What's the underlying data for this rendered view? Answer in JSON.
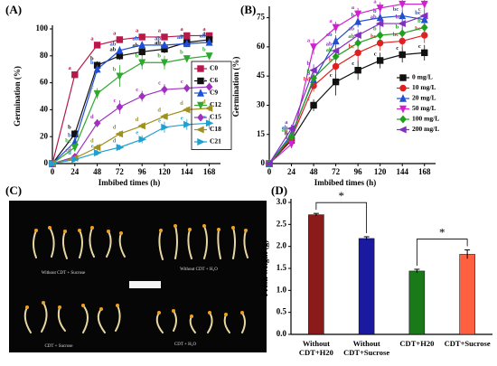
{
  "chart_data": [
    {
      "type": "line",
      "panel_label": "(A)",
      "ylabel": "Germination (%)",
      "xlabel": "Imbibed times (h)",
      "x": [
        0,
        24,
        48,
        72,
        96,
        120,
        144,
        168
      ],
      "xlim": [
        0,
        180
      ],
      "xticks": [
        0,
        24,
        48,
        72,
        96,
        120,
        144,
        168
      ],
      "ylim": [
        0,
        100
      ],
      "yticks": [
        0,
        20,
        40,
        60,
        80,
        100
      ],
      "legend": "right",
      "legend_box": true,
      "series": [
        {
          "name": "C0",
          "color": "#b8184a",
          "marker": "square",
          "values": [
            0,
            66,
            88,
            92,
            94,
            94,
            95,
            95
          ],
          "errors": [
            0,
            1,
            2,
            2,
            2,
            2,
            2,
            2
          ],
          "letters": [
            null,
            "a",
            "a",
            "a",
            "a",
            "a",
            "a",
            "a"
          ]
        },
        {
          "name": "C6",
          "color": "#111111",
          "marker": "square",
          "values": [
            0,
            22,
            73,
            80,
            83,
            85,
            90,
            92
          ],
          "errors": [
            0,
            3,
            3,
            3,
            3,
            3,
            2,
            2
          ],
          "letters": [
            null,
            "b",
            "b",
            "ab",
            "ab",
            "ab",
            "a",
            "a"
          ]
        },
        {
          "name": "C9",
          "color": "#1f4fd8",
          "marker": "triangle-up",
          "values": [
            0,
            16,
            70,
            84,
            88,
            88,
            89,
            90
          ],
          "errors": [
            0,
            3,
            3,
            3,
            2,
            2,
            2,
            2
          ],
          "letters": [
            null,
            "b",
            "b",
            "ab",
            "ab",
            "ab",
            "ab",
            "ab"
          ]
        },
        {
          "name": "C12",
          "color": "#2ea82e",
          "marker": "triangle-down",
          "values": [
            0,
            12,
            52,
            65,
            75,
            75,
            78,
            80
          ],
          "errors": [
            0,
            3,
            4,
            8,
            5,
            5,
            2,
            2
          ],
          "letters": [
            null,
            "bc",
            "c",
            "b",
            "b",
            "b",
            "b",
            "b"
          ]
        },
        {
          "name": "C15",
          "color": "#a030c0",
          "marker": "diamond",
          "values": [
            0,
            5,
            30,
            42,
            50,
            55,
            56,
            57
          ],
          "errors": [
            0,
            2,
            3,
            5,
            4,
            4,
            3,
            3
          ],
          "letters": [
            null,
            "cd",
            "d",
            "c",
            "c",
            "c",
            "c",
            "c"
          ]
        },
        {
          "name": "C18",
          "color": "#a09020",
          "marker": "triangle-left",
          "values": [
            0,
            4,
            12,
            22,
            28,
            35,
            40,
            41
          ],
          "errors": [
            0,
            1,
            2,
            2,
            2,
            2,
            2,
            2
          ],
          "letters": [
            null,
            "d",
            "d",
            "d",
            "d",
            "d",
            "d",
            "d"
          ]
        },
        {
          "name": "C21",
          "color": "#20a0d0",
          "marker": "triangle-right",
          "values": [
            0,
            3,
            8,
            12,
            18,
            27,
            29,
            30
          ],
          "errors": [
            0,
            1,
            2,
            2,
            3,
            4,
            4,
            4
          ],
          "letters": [
            null,
            "d",
            "e",
            "d",
            "e",
            "e",
            "e",
            "e"
          ]
        }
      ]
    },
    {
      "type": "line",
      "panel_label": "(B)",
      "ylabel": "Germination (%)",
      "xlabel": "Imbibed times (h)",
      "x": [
        0,
        24,
        48,
        72,
        96,
        120,
        144,
        168
      ],
      "xlim": [
        0,
        180
      ],
      "xticks": [
        0,
        24,
        48,
        72,
        96,
        120,
        144,
        168
      ],
      "ylim": [
        0,
        79
      ],
      "yticks": [
        0,
        15,
        30,
        45,
        60,
        75
      ],
      "legend": "center right",
      "legend_box": false,
      "series": [
        {
          "name": "0 mg/L",
          "color": "#111111",
          "marker": "square",
          "values": [
            0,
            12,
            30,
            42,
            48,
            53,
            56,
            57
          ],
          "errors": [
            0,
            3,
            3,
            7,
            5,
            4,
            4,
            4
          ],
          "letters": [
            null,
            "b",
            "c",
            "c",
            "c",
            "c",
            "c",
            "c"
          ]
        },
        {
          "name": "10 mg/L",
          "color": "#e02020",
          "marker": "circle",
          "values": [
            0,
            13,
            40,
            50,
            57,
            62,
            63,
            66
          ],
          "errors": [
            0,
            3,
            3,
            4,
            4,
            4,
            4,
            4
          ],
          "letters": [
            null,
            "b",
            "bd",
            "b",
            "bc",
            "bc",
            "bc",
            "bc"
          ]
        },
        {
          "name": "20 mg/L",
          "color": "#2050d0",
          "marker": "triangle-up",
          "values": [
            0,
            15,
            43,
            63,
            73,
            75,
            76,
            74
          ],
          "errors": [
            0,
            2,
            3,
            3,
            3,
            3,
            3,
            3
          ],
          "letters": [
            null,
            "ab",
            "b",
            "ab",
            "b",
            "b",
            "bc",
            "bc"
          ]
        },
        {
          "name": "50 mg/L",
          "color": "#d020d0",
          "marker": "triangle-down",
          "values": [
            0,
            10,
            60,
            70,
            77,
            80,
            82,
            82
          ],
          "errors": [
            0,
            2,
            4,
            3,
            3,
            3,
            3,
            3
          ],
          "letters": [
            null,
            "a",
            "a",
            "a",
            "a",
            "a",
            "a",
            "a"
          ]
        },
        {
          "name": "100 mg/L",
          "color": "#20a020",
          "marker": "diamond",
          "values": [
            0,
            14,
            44,
            55,
            62,
            66,
            67,
            70
          ],
          "errors": [
            0,
            2,
            4,
            3,
            3,
            3,
            3,
            3
          ],
          "letters": [
            null,
            "ab",
            "b",
            "ab",
            "ab",
            "b",
            "b",
            "b"
          ]
        },
        {
          "name": "200 mg/L",
          "color": "#8030c0",
          "marker": "triangle-left",
          "values": [
            0,
            18,
            48,
            58,
            66,
            72,
            72,
            76
          ],
          "errors": [
            0,
            2,
            3,
            3,
            3,
            3,
            3,
            3
          ],
          "letters": [
            null,
            "a",
            "b",
            "ab",
            "ab",
            "ab",
            "b",
            "c"
          ]
        }
      ]
    },
    {
      "type": "bar",
      "panel_label": "(D)",
      "ylabel": "Fresh weight (g)",
      "categories": [
        "Without\nCDT+H20",
        "Without\nCDT+Sucrose",
        "CDT+H20",
        "CDT+Sucrose"
      ],
      "values": [
        2.72,
        2.18,
        1.44,
        1.82
      ],
      "errors": [
        0.03,
        0.04,
        0.04,
        0.1
      ],
      "colors": [
        "#8b1a1a",
        "#1a1aa0",
        "#1a7a1a",
        "#ff6040"
      ],
      "ylim": [
        0,
        3
      ],
      "yticks": [
        {
          "value": 0,
          "label": "0.0"
        },
        0.5,
        {
          "value": 1,
          "label": "1.0"
        },
        1.5,
        {
          "value": 2,
          "label": "2.0"
        },
        2.5,
        {
          "value": 3,
          "label": "3.0"
        }
      ],
      "annotations": [
        "*",
        "*"
      ]
    }
  ],
  "photo": {
    "panel_label": "(C)",
    "captions": [
      "Without CDT + Sucrose",
      "Without CDT + H₂O",
      "CDT + Sucrose",
      "CDT + H₂O"
    ]
  }
}
